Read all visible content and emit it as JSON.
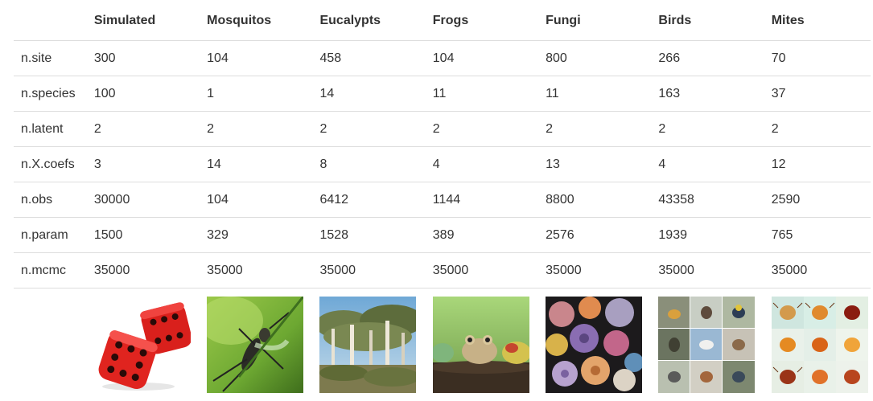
{
  "header": {
    "corner": "",
    "columns": [
      "Simulated",
      "Mosquitos",
      "Eucalypts",
      "Frogs",
      "Fungi",
      "Birds",
      "Mites"
    ]
  },
  "rows": [
    {
      "label": "n.site",
      "values": [
        "300",
        "104",
        "458",
        "104",
        "800",
        "266",
        "70"
      ]
    },
    {
      "label": "n.species",
      "values": [
        "100",
        "1",
        "14",
        "11",
        "11",
        "163",
        "37"
      ]
    },
    {
      "label": "n.latent",
      "values": [
        "2",
        "2",
        "2",
        "2",
        "2",
        "2",
        "2"
      ]
    },
    {
      "label": "n.X.coefs",
      "values": [
        "3",
        "14",
        "8",
        "4",
        "13",
        "4",
        "12"
      ]
    },
    {
      "label": "n.obs",
      "values": [
        "30000",
        "104",
        "6412",
        "1144",
        "8800",
        "43358",
        "2590"
      ]
    },
    {
      "label": "n.param",
      "values": [
        "1500",
        "329",
        "1528",
        "389",
        "2576",
        "1939",
        "765"
      ]
    },
    {
      "label": "n.mcmc",
      "values": [
        "35000",
        "35000",
        "35000",
        "35000",
        "35000",
        "35000",
        "35000"
      ]
    }
  ],
  "images": [
    {
      "icon": "dice-image"
    },
    {
      "icon": "mosquito-image"
    },
    {
      "icon": "eucalypt-forest-image"
    },
    {
      "icon": "frogs-image"
    },
    {
      "icon": "fungi-image"
    },
    {
      "icon": "birds-grid-image"
    },
    {
      "icon": "mites-grid-image"
    }
  ]
}
